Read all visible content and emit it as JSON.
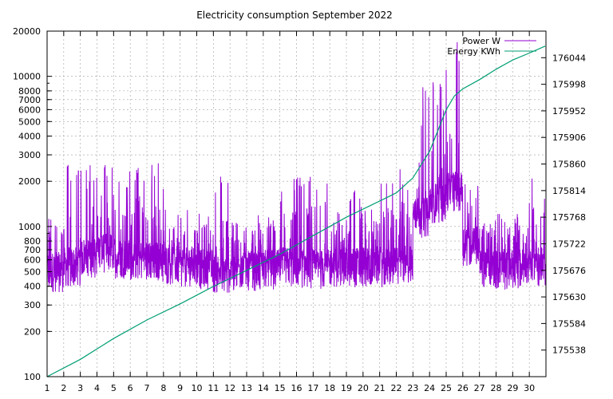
{
  "chart_data": {
    "type": "line",
    "title": "Electricity consumption September 2022",
    "x": {
      "label": "",
      "range": [
        1,
        31
      ],
      "ticks": [
        "1",
        "2",
        "3",
        "4",
        "5",
        "6",
        "7",
        "8",
        "9",
        "10",
        "11",
        "12",
        "13",
        "14",
        "15",
        "16",
        "17",
        "18",
        "19",
        "20",
        "21",
        "22",
        "23",
        "24",
        "25",
        "26",
        "27",
        "28",
        "29",
        "30"
      ]
    },
    "y_left": {
      "label": "",
      "scale": "log",
      "range": [
        100,
        20000
      ],
      "ticks": [
        "100",
        "200",
        "300",
        "400",
        "500",
        "600",
        "700",
        "800",
        "1000",
        "2000",
        "3000",
        "4000",
        "5000",
        "6000",
        "7000",
        "8000",
        "10000",
        "20000"
      ]
    },
    "y_right": {
      "label": "",
      "range": [
        175492,
        176090
      ],
      "ticks": [
        "175538",
        "175584",
        "175630",
        "175676",
        "175722",
        "175768",
        "175814",
        "175860",
        "175906",
        "175952",
        "175998",
        "176044"
      ]
    },
    "grid": true,
    "legend_position": "top-right",
    "series": [
      {
        "name": "Power W",
        "axis": "left",
        "color": "#9400d3",
        "profile": {
          "daily_base": [
            520,
            560,
            650,
            700,
            640,
            620,
            610,
            580,
            560,
            540,
            510,
            520,
            530,
            540,
            560,
            550,
            540,
            560,
            560,
            570,
            560,
            580,
            1200,
            1500,
            1800,
            780,
            560,
            540,
            550,
            560
          ],
          "daily_peak": [
            1000,
            2600,
            2600,
            2600,
            2500,
            2500,
            2700,
            1000,
            1000,
            1100,
            2200,
            1100,
            1000,
            1100,
            2200,
            2200,
            2200,
            1100,
            2100,
            1100,
            2100,
            2600,
            8800,
            11500,
            17000,
            2100,
            1100,
            1000,
            1100,
            2200
          ],
          "min": 320,
          "max": 18000
        }
      },
      {
        "name": "Energy KWh",
        "axis": "right",
        "color": "#009e73",
        "x": [
          1,
          3,
          5,
          7,
          9,
          11,
          13,
          15,
          17,
          19,
          21,
          22,
          23,
          24,
          25,
          25.5,
          26,
          27,
          28,
          29,
          30,
          30.95
        ],
        "values": [
          175492,
          175522,
          175558,
          175590,
          175618,
          175648,
          175676,
          175704,
          175736,
          175768,
          175796,
          175810,
          175836,
          175882,
          175954,
          175978,
          175990,
          176006,
          176024,
          176040,
          176052,
          176064
        ]
      }
    ]
  }
}
